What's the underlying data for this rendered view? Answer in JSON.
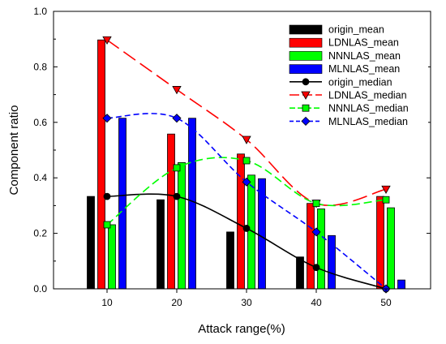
{
  "chart_data": {
    "type": "bar",
    "xlabel": "Attack range(%)",
    "ylabel": "Component ratio",
    "categories": [
      "10",
      "20",
      "30",
      "40",
      "50"
    ],
    "ylim": [
      0,
      1.0
    ],
    "yticks": [
      "0.0",
      "0.2",
      "0.4",
      "0.6",
      "0.8",
      "1.0"
    ],
    "grid": false,
    "legend_position": "top-right",
    "bar_series": [
      {
        "name": "origin_mean",
        "color": "#000000",
        "values": [
          0.333,
          0.321,
          0.205,
          0.115,
          0.0
        ]
      },
      {
        "name": "LDNLAS_mean",
        "color": "#ff0000",
        "values": [
          0.897,
          0.558,
          0.486,
          0.308,
          0.333
        ]
      },
      {
        "name": "NNNLAS_mean",
        "color": "#00ff00",
        "values": [
          0.231,
          0.455,
          0.41,
          0.288,
          0.292
        ]
      },
      {
        "name": "MLNLAS_mean",
        "color": "#0000ff",
        "values": [
          0.615,
          0.615,
          0.397,
          0.192,
          0.032
        ]
      }
    ],
    "line_series": [
      {
        "name": "origin_median",
        "color": "#000000",
        "marker": "circle",
        "dash": "solid",
        "values": [
          0.333,
          0.333,
          0.218,
          0.077,
          0.0
        ]
      },
      {
        "name": "LDNLAS_median",
        "color": "#ff0000",
        "marker": "triangle-down",
        "dash": "long-dash",
        "values": [
          0.897,
          0.718,
          0.538,
          0.308,
          0.359
        ]
      },
      {
        "name": "NNNLAS_median",
        "color": "#00ff00",
        "marker": "square",
        "dash": "dash",
        "values": [
          0.231,
          0.436,
          0.462,
          0.308,
          0.321
        ]
      },
      {
        "name": "MLNLAS_median",
        "color": "#0000ff",
        "marker": "diamond",
        "dash": "short-dash",
        "values": [
          0.615,
          0.615,
          0.385,
          0.205,
          0.0
        ]
      }
    ]
  }
}
